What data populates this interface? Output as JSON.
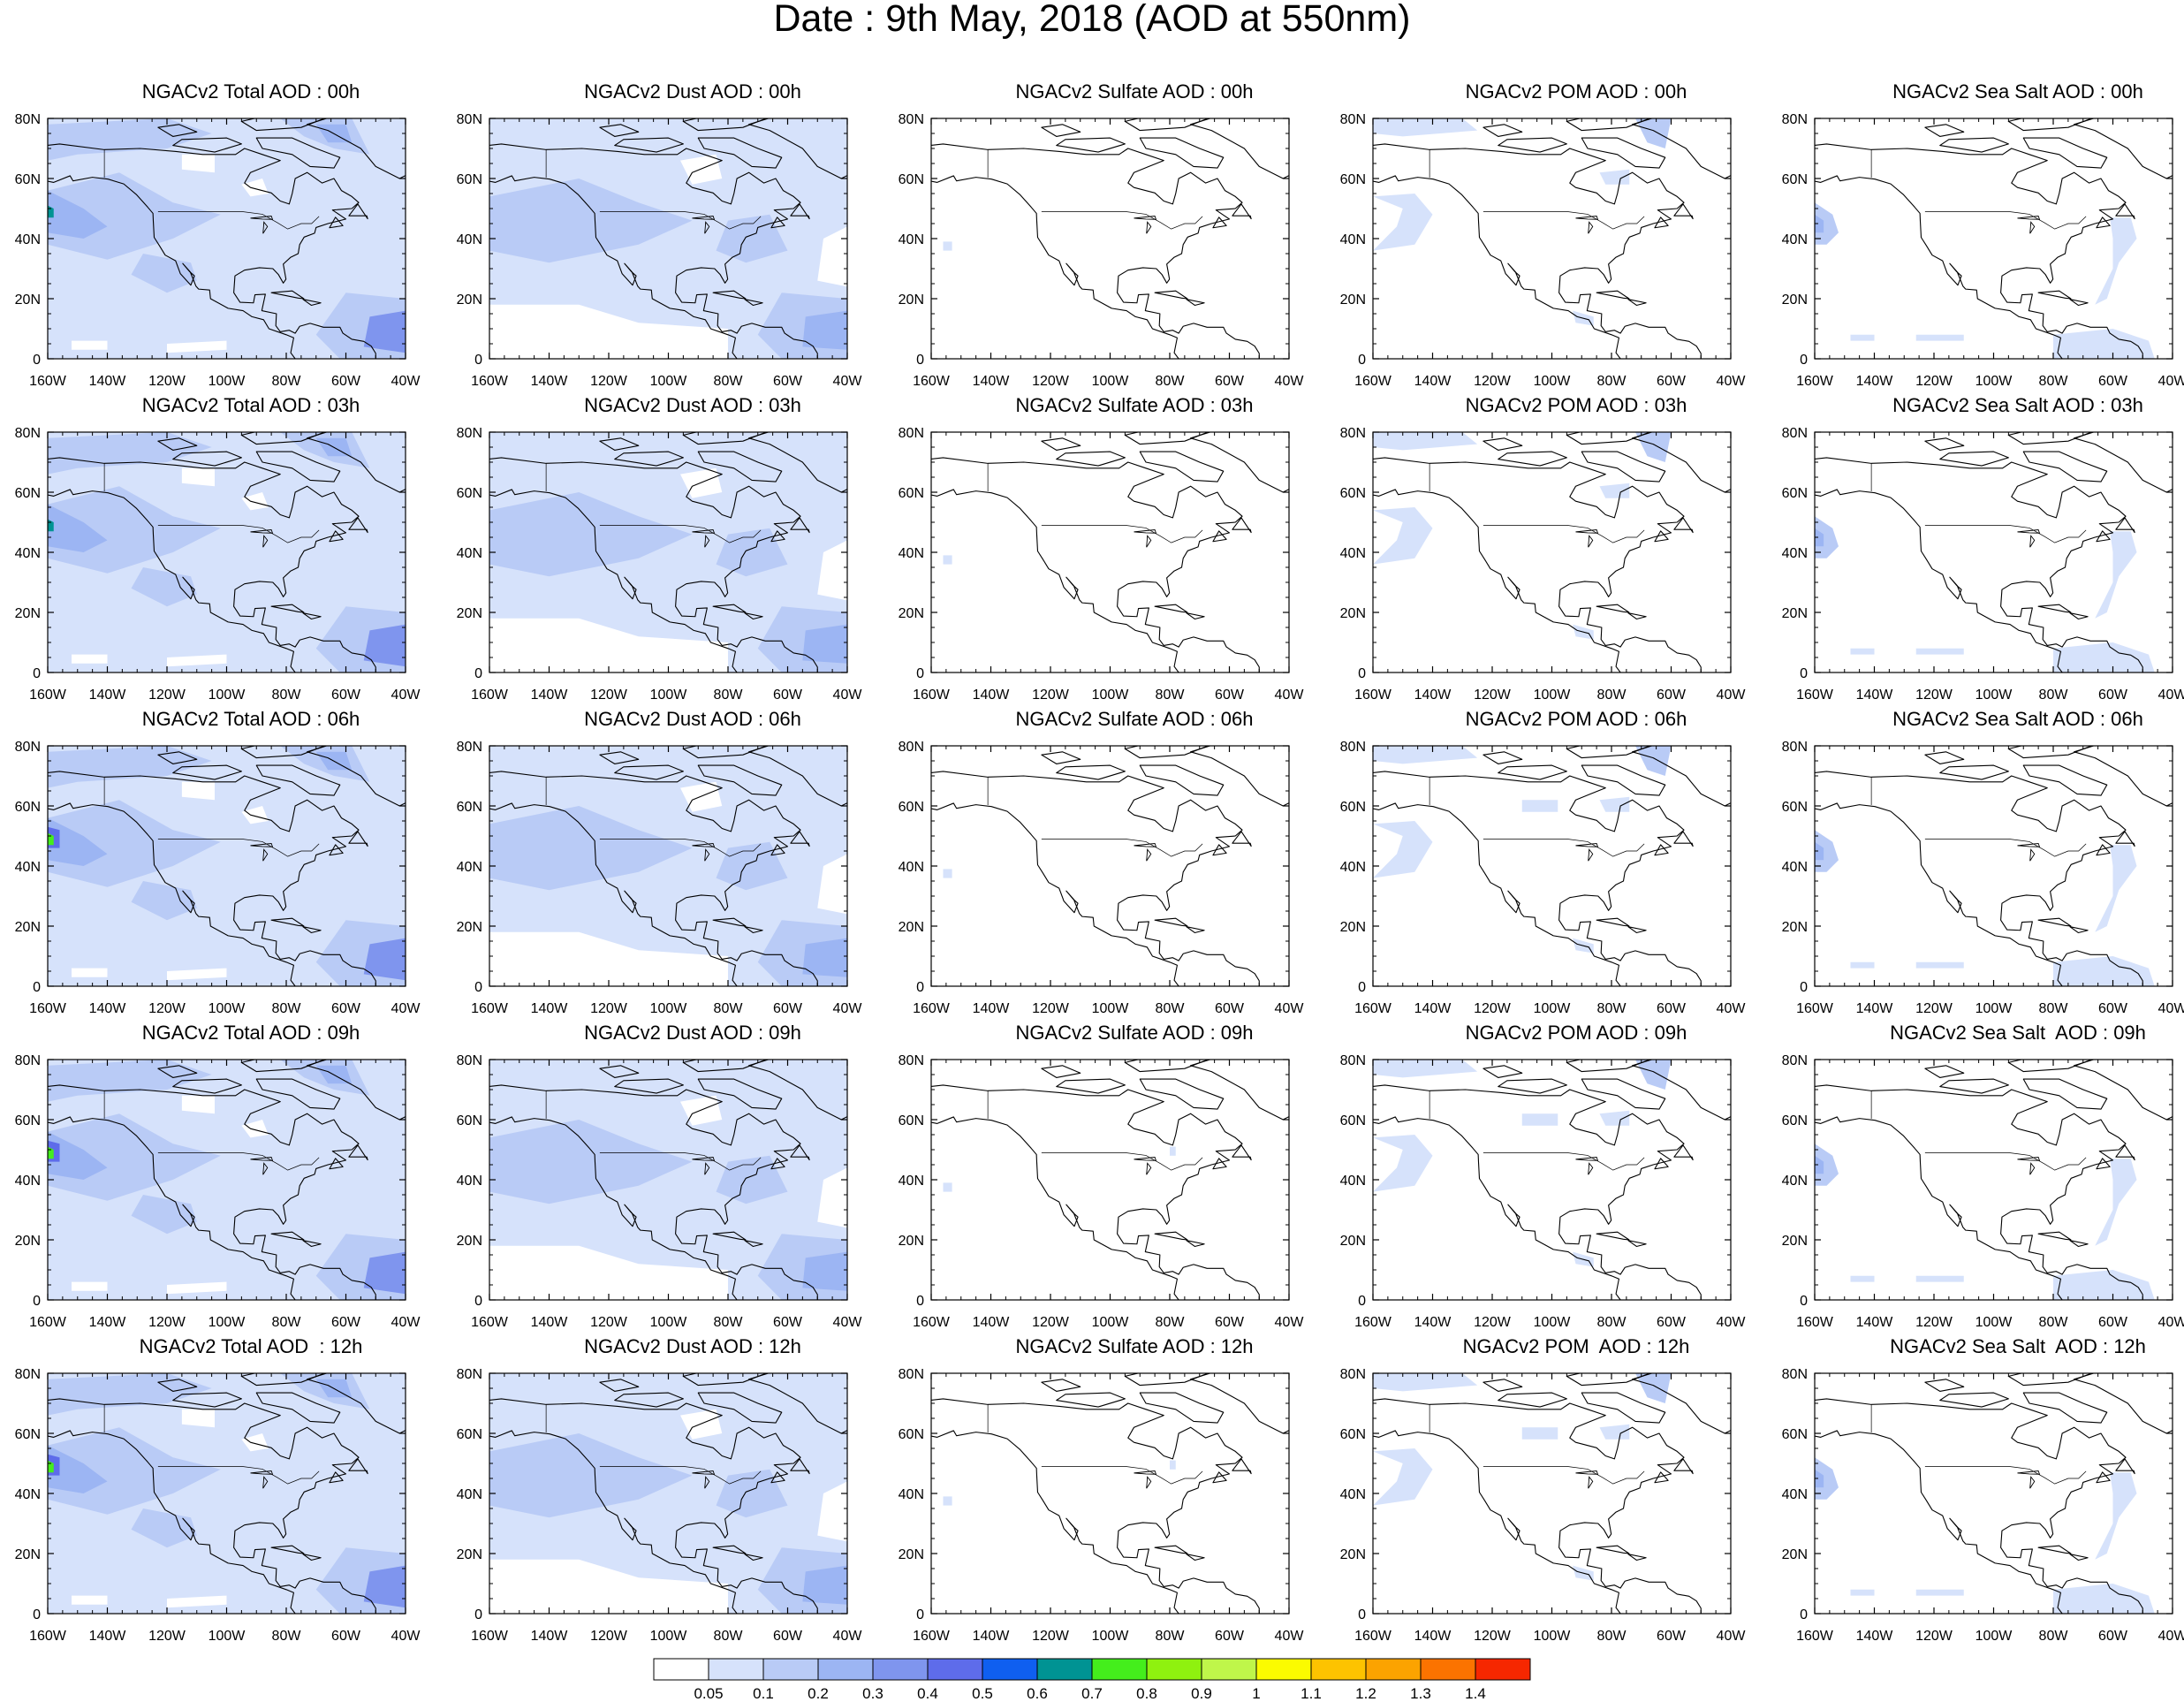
{
  "title": "Date : 9th May, 2018 (AOD at 550nm)",
  "panels": [
    [
      "NGACv2 Total AOD : 00h",
      "NGACv2 Dust AOD : 00h",
      "NGACv2 Sulfate AOD : 00h",
      "NGACv2 POM AOD : 00h",
      "NGACv2 Sea Salt AOD : 00h"
    ],
    [
      "NGACv2 Total AOD : 03h",
      "NGACv2 Dust AOD : 03h",
      "NGACv2 Sulfate AOD : 03h",
      "NGACv2 POM AOD : 03h",
      "NGACv2 Sea Salt AOD : 03h"
    ],
    [
      "NGACv2 Total AOD : 06h",
      "NGACv2 Dust AOD : 06h",
      "NGACv2 Sulfate AOD : 06h",
      "NGACv2 POM AOD : 06h",
      "NGACv2 Sea Salt AOD : 06h"
    ],
    [
      "NGACv2 Total AOD : 09h",
      "NGACv2 Dust AOD : 09h",
      "NGACv2 Sulfate AOD : 09h",
      "NGACv2 POM AOD : 09h",
      "NGACv2 Sea Salt  AOD : 09h"
    ],
    [
      "NGACv2 Total AOD  : 12h",
      "NGACv2 Dust AOD : 12h",
      "NGACv2 Sulfate AOD : 12h",
      "NGACv2 POM  AOD : 12h",
      "NGACv2 Sea Salt  AOD : 12h"
    ]
  ],
  "axes": {
    "lat_ticks": [
      "0",
      "20N",
      "40N",
      "60N",
      "80N"
    ],
    "lon_ticks": [
      "160W",
      "140W",
      "120W",
      "100W",
      "80W",
      "60W",
      "40W"
    ]
  },
  "colorbar": {
    "colors": [
      "#ffffff",
      "#d6e2fb",
      "#b9cbf6",
      "#9cb5f3",
      "#7f95ee",
      "#5e6cea",
      "#0f5ff0",
      "#009393",
      "#44ee1c",
      "#8ff10f",
      "#bff64a",
      "#fbfb00",
      "#fdc300",
      "#fca300",
      "#fb7300",
      "#f62700"
    ],
    "labels": [
      "0.05",
      "0.1",
      "0.2",
      "0.3",
      "0.4",
      "0.5",
      "0.6",
      "0.7",
      "0.8",
      "0.9",
      "1",
      "1.1",
      "1.2",
      "1.3",
      "1.4"
    ]
  }
}
